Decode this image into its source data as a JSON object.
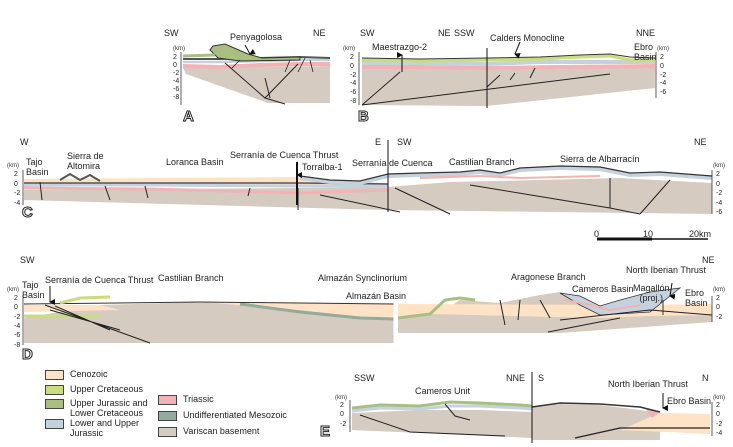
{
  "colors": {
    "cenozoic": "#fde2c6",
    "upper_cretaceous": "#c9dd7c",
    "upper_jurassic_lower_cretaceous": "#a8bf80",
    "lower_upper_jurassic": "#c5d1dc",
    "triassic": "#f1b3b6",
    "undifferentiated_mesozoic": "#93ab9b",
    "variscan_basement": "#d5cbc0"
  },
  "km_unit": "(km)",
  "panels": {
    "A": {
      "label": "A",
      "left_dir": "SW",
      "right_dir": "NE",
      "annotations": [
        "Penyagolosa"
      ],
      "ticks": [
        "2",
        "0",
        "-2",
        "-4",
        "-6",
        "-8"
      ]
    },
    "B": {
      "label": "B",
      "dirs": [
        "SW",
        "NE",
        "SSW",
        "NNE"
      ],
      "annotations": [
        "Maestrazgo-2",
        "Calders Monocline",
        "Ebro\nBasin"
      ],
      "ticks_left": [
        "2",
        "0",
        "-2",
        "-4",
        "-6",
        "-8"
      ],
      "ticks_right": [
        "2",
        "0",
        "-2",
        "-4",
        "-6"
      ]
    },
    "C": {
      "label": "C",
      "dirs": [
        "W",
        "E",
        "SW",
        "NE"
      ],
      "annotations": [
        "Tajo\nBasin",
        "Sierra de\nAltomira",
        "Loranca Basin",
        "Serranía de Cuenca Thrust",
        "Torralba-1",
        "Serranía de Cuenca",
        "Castilian Branch",
        "Sierra de Albarracín"
      ],
      "ticks_left": [
        "2",
        "0",
        "-2",
        "-4"
      ],
      "ticks_right": [
        "2",
        "0",
        "-2",
        "-4",
        "-6"
      ]
    },
    "D": {
      "label": "D",
      "dirs": [
        "SW",
        "NE"
      ],
      "annotations": [
        "Tajo\nBasin",
        "Serranía de Cuenca Thrust",
        "Castilian Branch",
        "Almazán Synclinorium",
        "Almazán Basin",
        "Aragonese Branch",
        "North Iberian Thrust",
        "Cameros Basin",
        "Magallón\n(proj.)",
        "Ebro\nBasin"
      ],
      "ticks_left": [
        "2",
        "0",
        "-2",
        "-4",
        "-6",
        "-8"
      ],
      "ticks_right": [
        "2",
        "0",
        "-2"
      ]
    },
    "E": {
      "label": "E",
      "dirs": [
        "SSW",
        "NNE",
        "S",
        "N"
      ],
      "annotations": [
        "Cameros Unit",
        "North Iberian Thrust",
        "Ebro Basin"
      ],
      "ticks_left": [
        "2",
        "0",
        "-2"
      ],
      "ticks_right": [
        "2",
        "0",
        "-2",
        "-4"
      ]
    }
  },
  "scale_bar": {
    "labels": [
      "0",
      "10",
      "20km"
    ]
  },
  "legend": [
    {
      "label": "Cenozoic",
      "color_key": "cenozoic"
    },
    {
      "label": "Upper Cretaceous",
      "color_key": "upper_cretaceous"
    },
    {
      "label": "Upper Jurassic and\nLower Cretaceous",
      "color_key": "upper_jurassic_lower_cretaceous"
    },
    {
      "label": "Lower and Upper\nJurassic",
      "color_key": "lower_upper_jurassic"
    },
    {
      "label": "Triassic",
      "color_key": "triassic"
    },
    {
      "label": "Undifferentiated Mesozoic",
      "color_key": "undifferentiated_mesozoic"
    },
    {
      "label": "Variscan basement",
      "color_key": "variscan_basement"
    }
  ]
}
